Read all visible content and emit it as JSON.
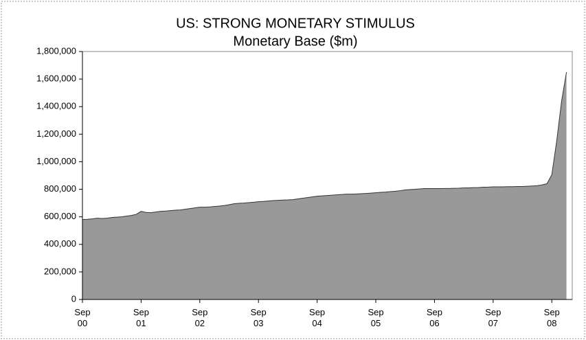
{
  "chart_data": {
    "type": "area",
    "title": "US: STRONG MONETARY STIMULUS",
    "subtitle": "Monetary Base ($m)",
    "color": "#999999",
    "line_color": "#333333",
    "categories": [
      "Sep 00",
      null,
      null,
      null,
      null,
      null,
      null,
      null,
      null,
      null,
      null,
      null,
      "Sep 01",
      null,
      null,
      null,
      null,
      null,
      null,
      null,
      null,
      null,
      null,
      null,
      "Sep 02",
      null,
      null,
      null,
      null,
      null,
      null,
      null,
      null,
      null,
      null,
      null,
      "Sep 03",
      null,
      null,
      null,
      null,
      null,
      null,
      null,
      null,
      null,
      null,
      null,
      "Sep 04",
      null,
      null,
      null,
      null,
      null,
      null,
      null,
      null,
      null,
      null,
      null,
      "Sep 05",
      null,
      null,
      null,
      null,
      null,
      null,
      null,
      null,
      null,
      null,
      null,
      "Sep 06",
      null,
      null,
      null,
      null,
      null,
      null,
      null,
      null,
      null,
      null,
      null,
      "Sep 07",
      null,
      null,
      null,
      null,
      null,
      null,
      null,
      null,
      null,
      null,
      null,
      "Sep 08",
      null,
      null,
      null
    ],
    "values": [
      580000,
      582000,
      585000,
      590000,
      588000,
      590000,
      595000,
      598000,
      600000,
      605000,
      610000,
      618000,
      640000,
      632000,
      630000,
      635000,
      640000,
      642000,
      645000,
      648000,
      650000,
      655000,
      660000,
      665000,
      670000,
      670000,
      672000,
      675000,
      678000,
      682000,
      688000,
      695000,
      698000,
      700000,
      703000,
      706000,
      710000,
      712000,
      715000,
      718000,
      720000,
      722000,
      723000,
      725000,
      730000,
      735000,
      740000,
      745000,
      750000,
      752000,
      755000,
      757000,
      760000,
      762000,
      765000,
      765000,
      766000,
      768000,
      770000,
      772000,
      775000,
      778000,
      780000,
      783000,
      786000,
      790000,
      795000,
      798000,
      800000,
      803000,
      805000,
      805000,
      805000,
      805000,
      806000,
      806000,
      807000,
      808000,
      810000,
      810000,
      812000,
      813000,
      815000,
      816000,
      818000,
      818000,
      818000,
      819000,
      819000,
      820000,
      820000,
      822000,
      824000,
      826000,
      832000,
      840000,
      905000,
      1150000,
      1440000,
      1650000
    ],
    "ylim": [
      0,
      1800000
    ],
    "yticks": [
      0,
      {
        "value": 200000,
        "label": "200,000"
      },
      {
        "value": 400000,
        "label": "400,000"
      },
      {
        "value": 600000,
        "label": "600,000"
      },
      {
        "value": 800000,
        "label": "800,000"
      },
      {
        "value": 1000000,
        "label": "1,000,000"
      },
      {
        "value": 1200000,
        "label": "1,200,000"
      },
      {
        "value": 1400000,
        "label": "1,400,000"
      },
      {
        "value": 1600000,
        "label": "1,600,000"
      },
      {
        "value": 1800000,
        "label": "1,800,000"
      }
    ]
  }
}
